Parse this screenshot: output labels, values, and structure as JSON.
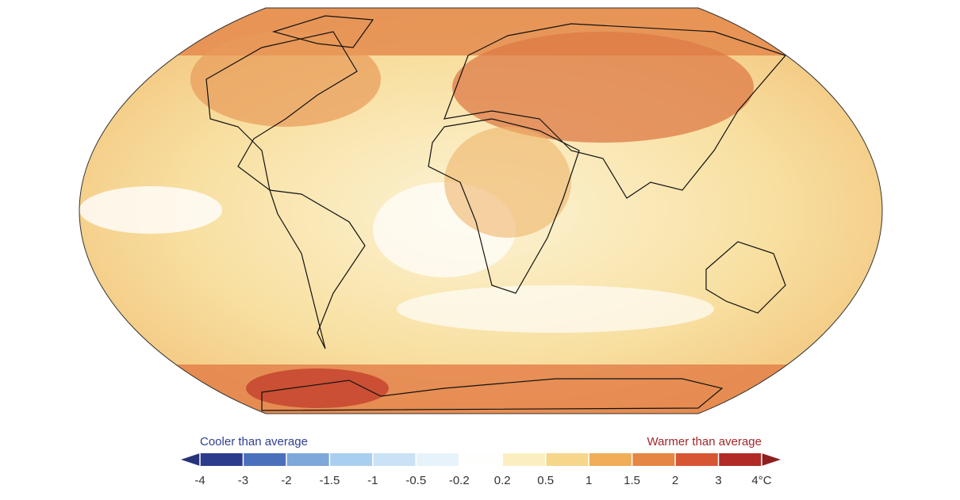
{
  "legend": {
    "left_label": "Cooler than average",
    "right_label": "Warmer than average",
    "left_label_color": "#2e3f8f",
    "right_label_color": "#a3262a",
    "ticks": [
      -4,
      -3,
      -2,
      -1.5,
      -1,
      -0.5,
      -0.2,
      0.2,
      0.5,
      1,
      1.5,
      2,
      3,
      {
        "value": 4,
        "label": "4°C"
      }
    ],
    "bin_colors": [
      "#2c3c8c",
      "#4a70bb",
      "#7ea8d9",
      "#a9cfef",
      "#c9e2f5",
      "#e7f3fb",
      "#fefefc",
      "#fbefc2",
      "#f5d68b",
      "#efae57",
      "#e58642",
      "#d65634",
      "#b02b28"
    ],
    "under_color": "#26337a",
    "over_color": "#8e1f1f"
  }
}
